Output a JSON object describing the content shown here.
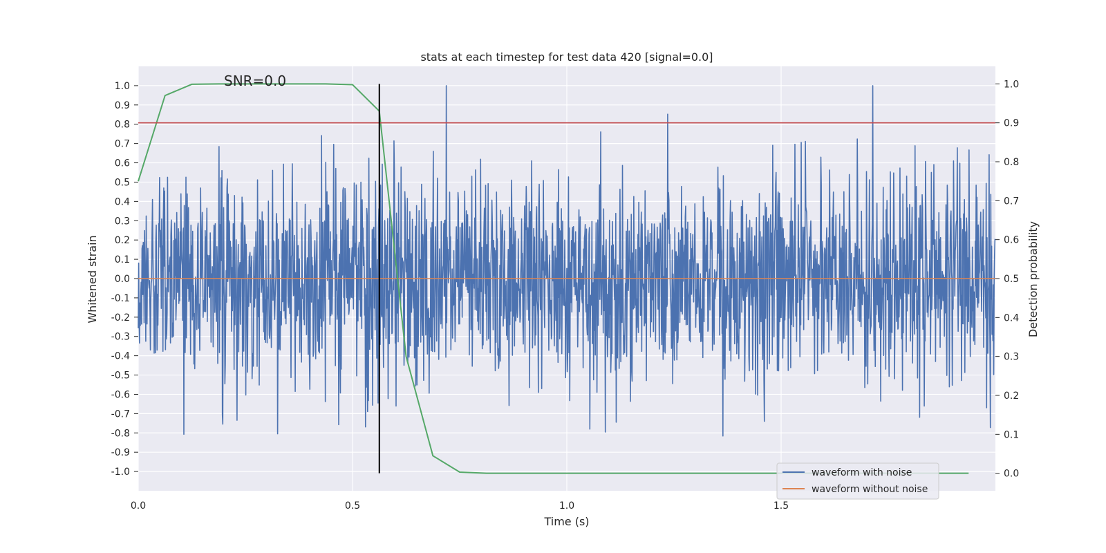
{
  "chart_data": {
    "type": "line",
    "title": "stats at each timestep for test data 420 [signal=0.0]",
    "xlabel": "Time (s)",
    "ylabel_left": "Whitened strain",
    "ylabel_right": "Detection probability",
    "xlim": [
      0.0,
      2.0
    ],
    "ylim_left": [
      -1.1,
      1.1
    ],
    "ylim_right": [
      -0.045,
      1.045
    ],
    "x_ticks": [
      0.0,
      0.5,
      1.0,
      1.5
    ],
    "x_tick_labels": [
      "0.0",
      "0.5",
      "1.0",
      "1.5"
    ],
    "y_left_ticks": [
      1.0,
      0.9,
      0.8,
      0.7,
      0.6,
      0.5,
      0.4,
      0.3,
      0.2,
      0.1,
      0.0,
      -0.1,
      -0.2,
      -0.3,
      -0.4,
      -0.5,
      -0.6,
      -0.7,
      -0.8,
      -0.9,
      -1.0
    ],
    "y_left_tick_labels": [
      "1.0",
      "0.9",
      "0.8",
      "0.7",
      "0.6",
      "0.5",
      "0.4",
      "0.3",
      "0.2",
      "0.1",
      "0.0",
      "-0.1",
      "-0.2",
      "-0.3",
      "-0.4",
      "-0.5",
      "-0.6",
      "-0.7",
      "-0.8",
      "-0.9",
      "-1.0"
    ],
    "y_right_ticks": [
      1.0,
      0.9,
      0.8,
      0.7,
      0.6,
      0.5,
      0.4,
      0.3,
      0.2,
      0.1,
      0.0
    ],
    "y_right_tick_labels": [
      "1.0",
      "0.9",
      "0.8",
      "0.7",
      "0.6",
      "0.5",
      "0.4",
      "0.3",
      "0.2",
      "0.1",
      "0.0"
    ],
    "annotation": "SNR=0.0",
    "grid": true,
    "legend_position": "lower right",
    "series": [
      {
        "name": "waveform with noise",
        "axis": "left",
        "color": "#4c72b0",
        "description_samples": 2048,
        "seed": 420,
        "amplitude_sigma": 0.27
      },
      {
        "name": "waveform without noise",
        "axis": "left",
        "color": "#dd8452",
        "x": [
          0.0,
          2.0
        ],
        "y": [
          0.0,
          0.0
        ]
      },
      {
        "axis": "right",
        "color": "#55a868",
        "x": [
          0.0,
          0.0625,
          0.125,
          0.1875,
          0.25,
          0.3125,
          0.375,
          0.4375,
          0.5,
          0.5625,
          0.625,
          0.6875,
          0.75,
          0.8125,
          0.875,
          0.9375,
          1.0,
          1.0625,
          1.125,
          1.1875,
          1.25,
          1.3125,
          1.375,
          1.4375,
          1.5,
          1.5625,
          1.625,
          1.6875,
          1.75,
          1.8125,
          1.875,
          1.9375
        ],
        "y": [
          0.75,
          0.97,
          0.999,
          1.0,
          1.0,
          1.0,
          1.0,
          1.0,
          0.998,
          0.93,
          0.3,
          0.045,
          0.003,
          0.0,
          0.0,
          0.0,
          0.0,
          0.0,
          0.0,
          0.0,
          0.0,
          0.0,
          0.0,
          0.0,
          0.0,
          0.0,
          0.0,
          0.0,
          0.0,
          0.0,
          0.0,
          0.0
        ]
      }
    ],
    "threshold_line": {
      "axis": "right",
      "y": 0.9,
      "color": "#c44e52"
    },
    "marker_line": {
      "x": 0.5625,
      "y_range_right": [
        0.0,
        1.0
      ],
      "color": "#000000"
    }
  },
  "legend": {
    "items": [
      {
        "label": "waveform with noise",
        "color": "#4c72b0"
      },
      {
        "label": "waveform without noise",
        "color": "#dd8452"
      }
    ]
  }
}
